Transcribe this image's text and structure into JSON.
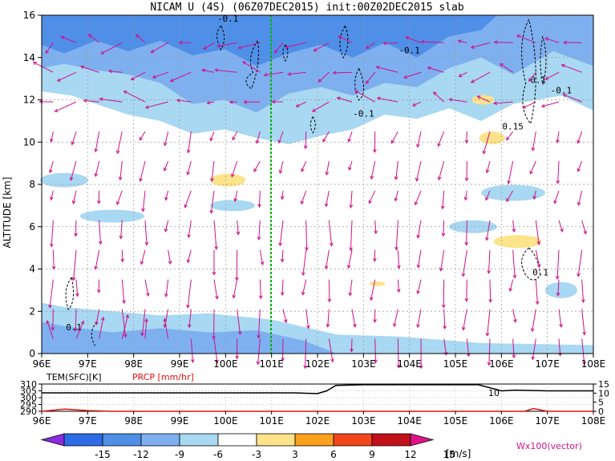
{
  "title": "NICAM U (4S) (06Z07DEC2015) init:00Z02DEC2015 slab",
  "ylabel": "ALTITUDE [km]",
  "chart_data": [
    {
      "type": "heatmap",
      "name_hint": "cross-section",
      "x_ticks": [
        "96E",
        "97E",
        "98E",
        "99E",
        "100E",
        "101E",
        "102E",
        "103E",
        "104E",
        "105E",
        "106E",
        "107E",
        "108E"
      ],
      "x_range": [
        96,
        108
      ],
      "y_ticks": [
        0,
        2,
        4,
        6,
        8,
        10,
        12,
        14,
        16
      ],
      "y_range": [
        0,
        16
      ],
      "grid": true,
      "reference_line_x": 101,
      "contour_labels": [
        "-0.1",
        "-0.1",
        "-0.1",
        "-0.1",
        "0.15",
        "0.1",
        "0.1",
        "0.1"
      ]
    },
    {
      "type": "line",
      "name_hint": "surface-panel",
      "left_label": "TEM(SFC)[K]",
      "right_label": "PRCP [mm/hr]",
      "left_ticks": [
        290,
        295,
        300,
        305,
        310
      ],
      "right_ticks": [
        0,
        5,
        10,
        15
      ],
      "x_ticks": [
        "96E",
        "97E",
        "98E",
        "99E",
        "100E",
        "101E",
        "102E",
        "103E",
        "104E",
        "105E",
        "106E",
        "107E",
        "108E"
      ],
      "tem_series": {
        "x": [
          96,
          97,
          98,
          99,
          100,
          101,
          101.5,
          102,
          102.2,
          102.4,
          103,
          104,
          105,
          105.5,
          106,
          106.3,
          107,
          108
        ],
        "y": [
          303.5,
          303.5,
          303.5,
          303.5,
          303.5,
          303.5,
          303.5,
          303,
          305,
          309,
          309.5,
          309.5,
          309.5,
          309.5,
          305,
          305.5,
          305,
          305
        ]
      },
      "prcp_series": {
        "x": [
          96,
          96.5,
          97,
          97.5,
          98,
          106,
          106.5,
          106.7,
          107,
          108
        ],
        "y": [
          0,
          1.2,
          0.4,
          0,
          0,
          0,
          0,
          1.5,
          0,
          0
        ]
      },
      "annotation": "10"
    }
  ],
  "colorbar": {
    "ticks": [
      "-15",
      "-12",
      "-9",
      "-6",
      "-3",
      "3",
      "6",
      "9",
      "12",
      "15"
    ],
    "colors": [
      "#8a2be2",
      "#2e6be6",
      "#4f8fe8",
      "#7eb0f0",
      "#a8d8f2",
      "#ffffff",
      "#fde38a",
      "#fba01c",
      "#f3461a",
      "#c0101a",
      "#e0158a"
    ],
    "unit": "[m/s]",
    "vector_label": "Wx100(vector)"
  }
}
